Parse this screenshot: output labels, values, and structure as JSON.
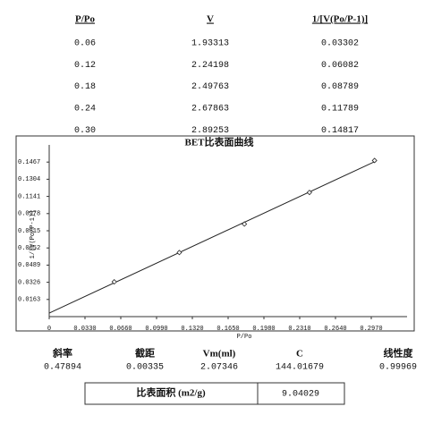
{
  "table": {
    "headers": [
      "P/Po",
      "V",
      "1/[V(Po/P-1)]"
    ],
    "rows": [
      [
        "0.06",
        "1.93313",
        "0.03302"
      ],
      [
        "0.12",
        "2.24198",
        "0.06082"
      ],
      [
        "0.18",
        "2.49763",
        "0.08789"
      ],
      [
        "0.24",
        "2.67863",
        "0.11789"
      ],
      [
        "0.30",
        "2.89253",
        "0.14817"
      ]
    ]
  },
  "chart_data": {
    "type": "line",
    "title": "BET比表面曲线",
    "x_label": "P/Po",
    "y_label": "1/[V(Po/P-1)]",
    "x": [
      0.06,
      0.12,
      0.18,
      0.24,
      0.3
    ],
    "values": [
      0.03302,
      0.06082,
      0.08789,
      0.11789,
      0.14817
    ],
    "color": "#222",
    "xlim": [
      0,
      0.33
    ],
    "ylim": [
      0,
      0.163
    ],
    "xticks": [
      0,
      {
        "value": 0.033,
        "label": "0.0330"
      },
      {
        "value": 0.066,
        "label": "0.0660"
      },
      {
        "value": 0.099,
        "label": "0.0990"
      },
      {
        "value": 0.132,
        "label": "0.1320"
      },
      {
        "value": 0.165,
        "label": "0.1650"
      },
      {
        "value": 0.198,
        "label": "0.1980"
      },
      {
        "value": 0.231,
        "label": "0.2310"
      },
      {
        "value": 0.264,
        "label": "0.2640"
      },
      {
        "value": 0.297,
        "label": "0.2970"
      }
    ],
    "yticks": [
      0.0163,
      0.0326,
      0.0489,
      0.0652,
      0.0815,
      0.0978,
      0.1141,
      0.1304,
      0.1467
    ]
  },
  "results": {
    "headers": [
      "斜率",
      "截距",
      "Vm(ml)",
      "C",
      "线性度"
    ],
    "values": [
      0.47894,
      0.00335,
      2.07346,
      144.01679,
      0.99969
    ]
  },
  "surface_area": {
    "label": "比表面积 (m2/g)",
    "value": 9.04029
  }
}
